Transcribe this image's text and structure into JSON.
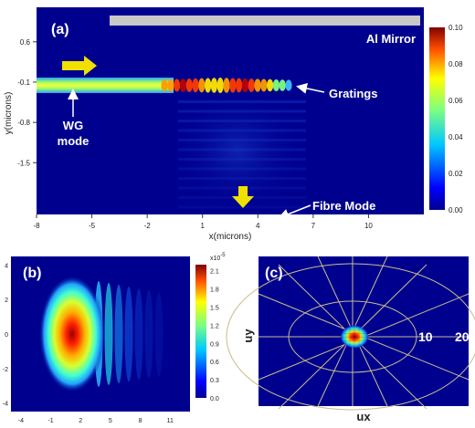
{
  "colors": {
    "field_bg": "#00008f",
    "mirror": "#c8c8c8",
    "arrow": "#f0e000",
    "annotation": "#ffffff"
  },
  "chart_data": [
    {
      "type": "heatmap",
      "panel_label": "(a)",
      "xlabel": "x(microns)",
      "ylabel": "y(microns)",
      "x_ticks": [
        "-8",
        "-5",
        "-2",
        "1",
        "4",
        "7",
        "10"
      ],
      "y_ticks": [
        "0.6",
        "-0.1",
        "-0.8",
        "-1.5"
      ],
      "xlim": [
        -8,
        13
      ],
      "ylim": [
        -2.4,
        1.2
      ],
      "colorbar": {
        "ticks": [
          "0.10",
          "0.08",
          "0.06",
          "0.04",
          "0.02",
          "0.00"
        ],
        "range": [
          0.0,
          0.1
        ]
      },
      "annotations": [
        "Al Mirror",
        "WG mode",
        "Gratings",
        "Fibre Mode"
      ],
      "wg_label_lines": [
        "WG",
        "mode"
      ]
    },
    {
      "type": "heatmap",
      "panel_label": "(b)",
      "x_ticks": [
        "-4",
        "-1",
        "2",
        "5",
        "8",
        "11"
      ],
      "y_ticks": [
        "4",
        "2",
        "0",
        "-2",
        "-4"
      ],
      "xlim": [
        -5,
        13
      ],
      "ylim": [
        -4.5,
        4.5
      ],
      "colorbar": {
        "exponent": "x10",
        "exponent_power": "-5",
        "ticks": [
          "2.1",
          "1.8",
          "1.5",
          "1.2",
          "0.9",
          "0.6",
          "0.3",
          "0.0"
        ],
        "range": [
          0.0,
          2.2
        ]
      }
    },
    {
      "type": "heatmap",
      "panel_label": "(c)",
      "xlabel": "ux",
      "ylabel": "uy",
      "ring_labels": [
        "10",
        "20"
      ]
    }
  ]
}
